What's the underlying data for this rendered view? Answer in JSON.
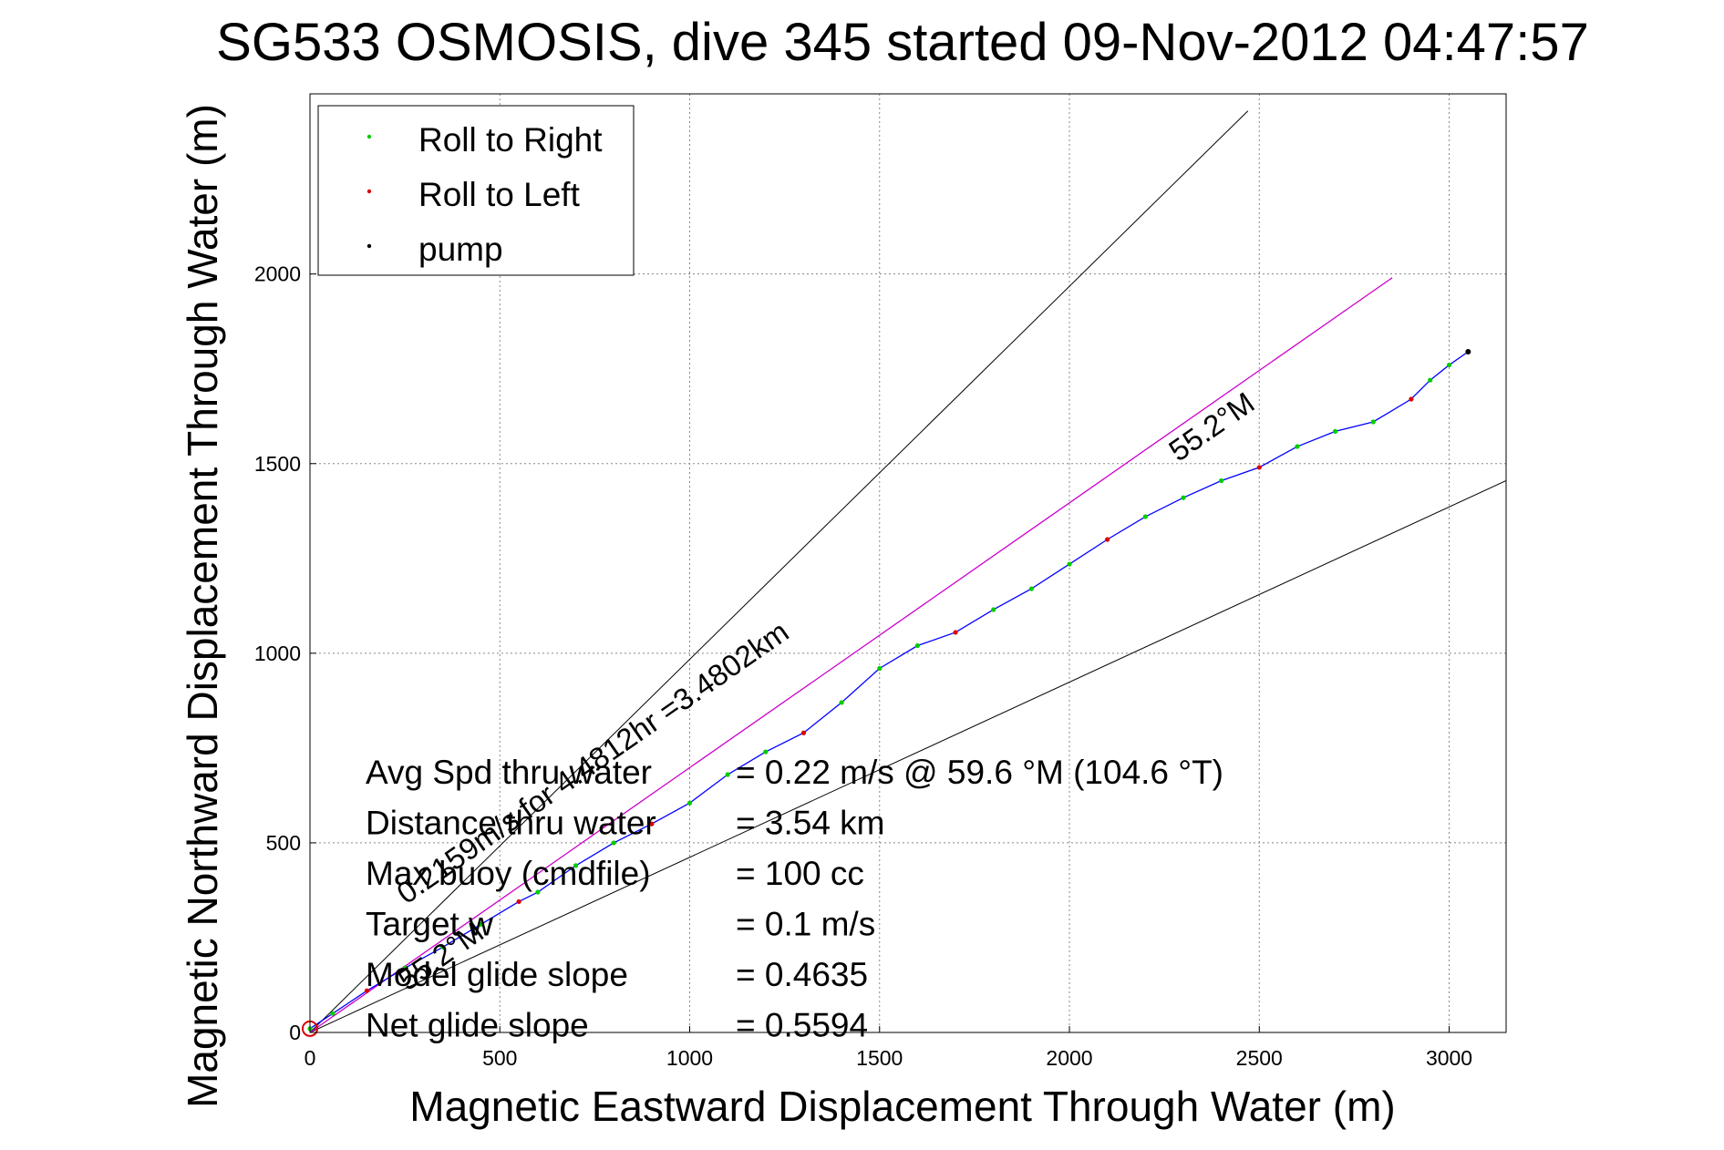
{
  "chart_data": {
    "type": "line",
    "title": "SG533 OSMOSIS, dive 345 started 09-Nov-2012 04:47:57",
    "xlabel": "Magnetic Eastward Displacement Through Water (m)",
    "ylabel": "Magnetic Northward Displacement Through Water (m)",
    "xlim": [
      0,
      3150
    ],
    "ylim": [
      0,
      2475
    ],
    "xticks": [
      0,
      500,
      1000,
      1500,
      2000,
      2500,
      3000
    ],
    "yticks": [
      0,
      500,
      1000,
      1500,
      2000
    ],
    "grid": true,
    "legend_position": "top-left",
    "legend": [
      {
        "label": "Roll to Right",
        "color": "#00cc00"
      },
      {
        "label": "Roll to Left",
        "color": "#dd0000"
      },
      {
        "label": "pump",
        "color": "#000000"
      }
    ],
    "track_color": "#0000ff",
    "heading_line_color": "#cc00cc",
    "track": [
      [
        0,
        10
      ],
      [
        60,
        50
      ],
      [
        150,
        110
      ],
      [
        250,
        170
      ],
      [
        350,
        225
      ],
      [
        450,
        285
      ],
      [
        550,
        345
      ],
      [
        600,
        370
      ],
      [
        700,
        440
      ],
      [
        800,
        500
      ],
      [
        900,
        550
      ],
      [
        1000,
        605
      ],
      [
        1100,
        680
      ],
      [
        1200,
        740
      ],
      [
        1300,
        790
      ],
      [
        1400,
        870
      ],
      [
        1500,
        960
      ],
      [
        1600,
        1020
      ],
      [
        1700,
        1055
      ],
      [
        1800,
        1115
      ],
      [
        1900,
        1170
      ],
      [
        2000,
        1235
      ],
      [
        2100,
        1300
      ],
      [
        2200,
        1360
      ],
      [
        2300,
        1410
      ],
      [
        2400,
        1455
      ],
      [
        2500,
        1490
      ],
      [
        2600,
        1545
      ],
      [
        2700,
        1585
      ],
      [
        2800,
        1610
      ],
      [
        2900,
        1670
      ],
      [
        2950,
        1720
      ],
      [
        3000,
        1760
      ],
      [
        3050,
        1795
      ]
    ],
    "heading_line": [
      [
        0,
        0
      ],
      [
        2850,
        1990
      ]
    ],
    "bracket_lines": [
      [
        [
          0,
          0
        ],
        [
          2470,
          2430
        ]
      ],
      [
        [
          0,
          0
        ],
        [
          3150,
          1455
        ]
      ]
    ],
    "annotations": {
      "heading_top": "55.2°M",
      "heading_bottom": "55.2°M",
      "distance": "0.2159m/s for 4.4812hr =3.4802km"
    },
    "summary_table": [
      {
        "label": "Avg Spd thru water",
        "value": "=  0.22 m/s @  59.6 °M (104.6 °T)"
      },
      {
        "label": "Distance thru water",
        "value": "=  3.54 km"
      },
      {
        "label": "Max buoy (cmdfile)",
        "value": "= 100 cc"
      },
      {
        "label": "Target w",
        "value": "= 0.1 m/s"
      },
      {
        "label": "Model glide slope",
        "value": "= 0.4635"
      },
      {
        "label": "Net glide slope",
        "value": "= 0.5594"
      }
    ]
  }
}
